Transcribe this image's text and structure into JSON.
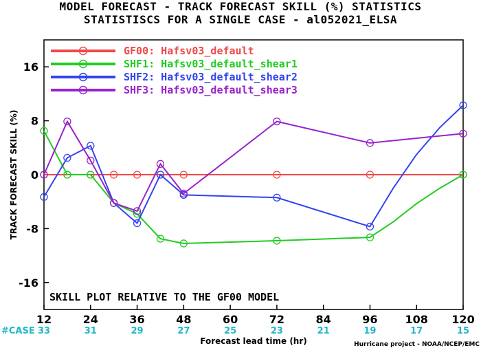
{
  "chart_data": {
    "type": "line",
    "title": "MODEL FORECAST - TRACK FORECAST SKILL (%) STATISTICS",
    "subtitle": "STATISTISCS FOR A SINGLE CASE - al052021_ELSA",
    "xlabel": "Forecast lead time (hr)",
    "ylabel": "TRACK FORECAST SKILL (%)",
    "xlim": [
      12,
      120
    ],
    "ylim": [
      -20,
      20
    ],
    "x_ticks": [
      12,
      24,
      36,
      48,
      60,
      72,
      84,
      96,
      108,
      120
    ],
    "y_ticks": [
      -16,
      -8,
      0,
      8,
      16
    ],
    "grid": false,
    "legend_position": "top-left",
    "annotation": "SKILL PLOT RELATIVE TO THE GF00 MODEL",
    "case_label": "#CASE",
    "case_counts": [
      33,
      31,
      29,
      27,
      25,
      23,
      21,
      19,
      17,
      15
    ],
    "credit": "Hurricane project - NOAA/NCEP/EMC",
    "series": [
      {
        "name": "GF00: Hafsv03_default",
        "color": "#f04848",
        "x": [
          12,
          18,
          24,
          30,
          36,
          42,
          48,
          54,
          60,
          66,
          72,
          78,
          84,
          90,
          96,
          102,
          108,
          114,
          120
        ],
        "y": [
          0,
          0,
          0,
          0,
          0,
          0,
          0,
          0,
          0,
          0,
          0,
          0,
          0,
          0,
          0,
          0,
          0,
          0,
          0
        ],
        "markers_x": [
          12,
          18,
          24,
          30,
          36,
          42,
          48,
          72,
          96,
          120
        ]
      },
      {
        "name": "SHF1: Hafsv03_default_shear1",
        "color": "#22cc22",
        "x": [
          12,
          18,
          24,
          30,
          36,
          42,
          48,
          72,
          96,
          102,
          108,
          114,
          120
        ],
        "y": [
          6.5,
          0,
          0,
          -4.2,
          -5.8,
          -9.5,
          -10.2,
          -9.8,
          -9.3,
          -7,
          -4.3,
          -2,
          0
        ],
        "markers_x": [
          12,
          18,
          24,
          30,
          36,
          42,
          48,
          72,
          96,
          120
        ]
      },
      {
        "name": "SHF2: Hafsv03_default_shear2",
        "color": "#3344ee",
        "x": [
          12,
          18,
          24,
          30,
          36,
          42,
          48,
          72,
          96,
          102,
          108,
          114,
          120
        ],
        "y": [
          -3.3,
          2.5,
          4.3,
          -4.2,
          -7.2,
          0,
          -3,
          -3.4,
          -7.7,
          -2,
          3,
          7,
          10.3
        ],
        "markers_x": [
          12,
          18,
          24,
          30,
          36,
          42,
          48,
          72,
          96,
          120
        ]
      },
      {
        "name": "SHF3: Hafsv03_default_shear3",
        "color": "#9922cc",
        "x": [
          12,
          18,
          24,
          30,
          36,
          42,
          48,
          72,
          96,
          120
        ],
        "y": [
          0,
          7.9,
          2.1,
          -4.2,
          -5.4,
          1.6,
          -2.8,
          7.9,
          4.7,
          6.1
        ],
        "markers_x": [
          12,
          18,
          24,
          30,
          36,
          42,
          48,
          72,
          96,
          120
        ]
      }
    ]
  }
}
